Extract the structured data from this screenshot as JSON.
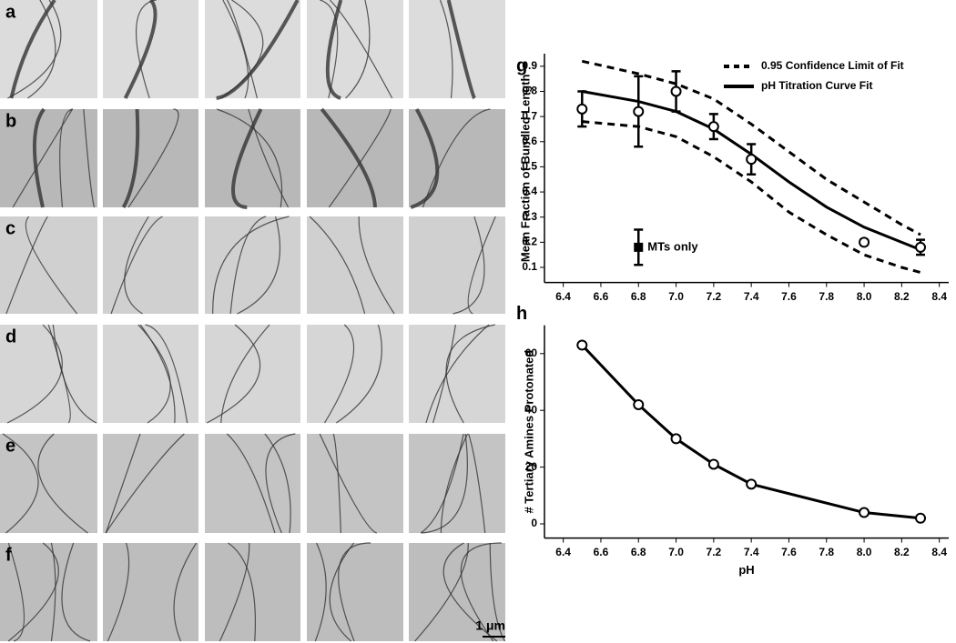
{
  "panels": {
    "labels": [
      "a",
      "b",
      "c",
      "d",
      "e",
      "f"
    ],
    "scale_bar": "1 μm"
  },
  "chart_data": [
    {
      "type": "scatter",
      "panel_label": "g",
      "y_label": "Mean Fraction of Bundled Length",
      "xlim": [
        6.3,
        8.45
      ],
      "ylim": [
        0.04,
        0.95
      ],
      "xticks": [
        6.4,
        6.6,
        6.8,
        {
          "value": 7,
          "label": "7.0"
        },
        7.2,
        7.4,
        7.6,
        7.8,
        {
          "value": 8,
          "label": "8.0"
        },
        8.2,
        8.4
      ],
      "yticks": [
        0.1,
        0.2,
        0.3,
        0.4,
        0.5,
        0.6,
        0.7,
        0.8,
        0.9
      ],
      "series": [
        {
          "name": "0.95 Confidence Limit of Fit",
          "color": "#000000",
          "style": "dashed",
          "x": [
            6.5,
            6.8,
            7.0,
            7.2,
            7.4,
            7.6,
            7.8,
            8.0,
            8.2,
            8.3
          ],
          "upper": [
            0.92,
            0.87,
            0.83,
            0.77,
            0.67,
            0.56,
            0.45,
            0.36,
            0.27,
            0.23
          ],
          "lower": [
            0.68,
            0.66,
            0.62,
            0.54,
            0.44,
            0.32,
            0.23,
            0.15,
            0.1,
            0.08
          ]
        },
        {
          "name": "pH Titration Curve Fit",
          "color": "#000000",
          "style": "solid",
          "x": [
            6.5,
            6.8,
            7.0,
            7.2,
            7.4,
            7.6,
            7.8,
            8.0,
            8.2,
            8.3
          ],
          "values": [
            0.8,
            0.76,
            0.72,
            0.65,
            0.55,
            0.44,
            0.34,
            0.26,
            0.2,
            0.17
          ]
        }
      ],
      "points": {
        "marker": "circle",
        "x": [
          6.5,
          6.8,
          7.0,
          7.2,
          7.4,
          8.0,
          8.3
        ],
        "values": [
          0.73,
          0.72,
          0.8,
          0.66,
          0.53,
          0.2,
          0.18
        ],
        "errors": [
          0.07,
          0.14,
          0.08,
          0.05,
          0.06,
          0.01,
          0.03
        ]
      },
      "control": {
        "name": "MTs only",
        "marker": "square",
        "x": [
          6.8
        ],
        "values": [
          0.18
        ],
        "errors": [
          0.07
        ]
      }
    },
    {
      "type": "line",
      "panel_label": "h",
      "x_label": "pH",
      "y_label": "# Tertiary Amines Protonated",
      "xlim": [
        6.3,
        8.45
      ],
      "ylim": [
        -5,
        70
      ],
      "xticks": [
        6.4,
        6.6,
        6.8,
        {
          "value": 7,
          "label": "7.0"
        },
        7.2,
        7.4,
        7.6,
        7.8,
        {
          "value": 8,
          "label": "8.0"
        },
        8.2,
        8.4
      ],
      "yticks": [
        0,
        20,
        40,
        60
      ],
      "color": "#000000",
      "x": [
        6.5,
        6.8,
        7.0,
        7.2,
        7.4,
        8.0,
        8.3
      ],
      "values": [
        63,
        42,
        30,
        21,
        14,
        4,
        2
      ]
    }
  ]
}
